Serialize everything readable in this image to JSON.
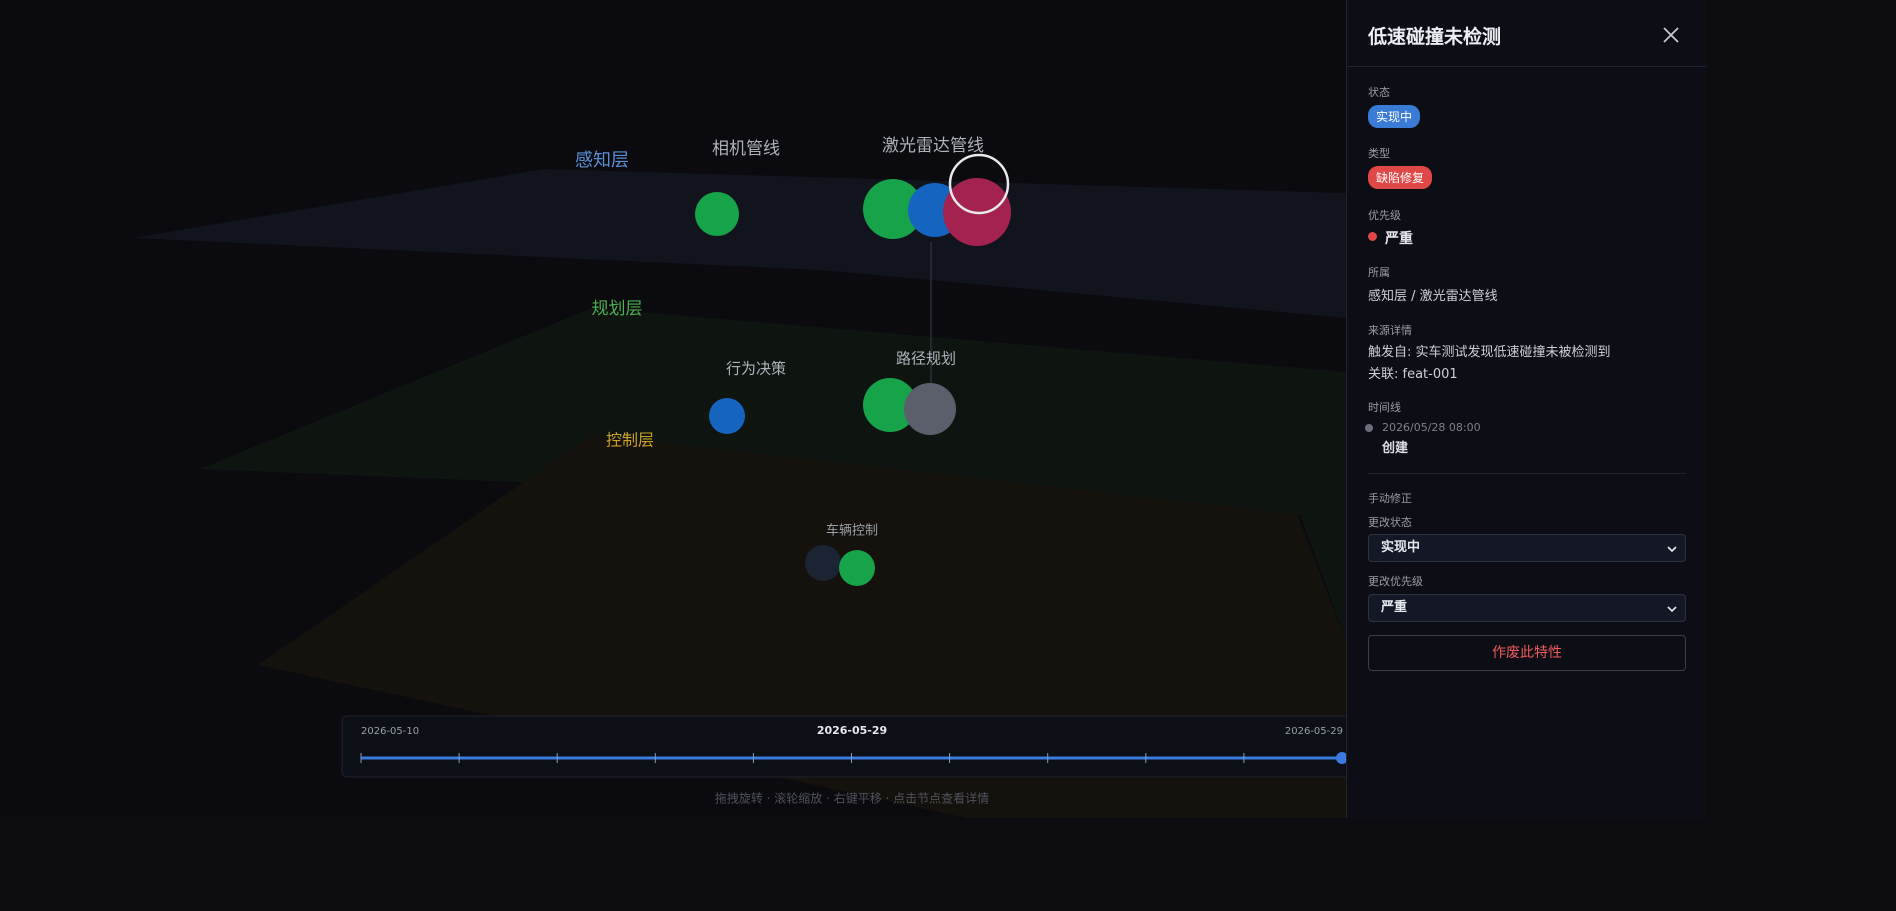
{
  "scene": {
    "layers": [
      "感知层",
      "规划层",
      "控制层"
    ],
    "modules": [
      "相机管线",
      "激光雷达管线",
      "行为决策",
      "路径规划",
      "车辆控制"
    ],
    "timeline": {
      "start": "2026-05-10",
      "current": "2026-05-29",
      "end": "2026-05-29"
    },
    "hint": "拖拽旋转 · 滚轮缩放 · 右键平移 · 点击节点查看详情"
  },
  "panel": {
    "title": "低速碰撞未检测",
    "status": {
      "label": "状态",
      "value": "实现中"
    },
    "type": {
      "label": "类型",
      "value": "缺陷修复"
    },
    "priority": {
      "label": "优先级",
      "value": "严重"
    },
    "owner": {
      "label": "所属",
      "value": "感知层 / 激光雷达管线"
    },
    "source": {
      "label": "来源详情",
      "trigger": "触发自: 实车测试发现低速碰撞未被检测到",
      "related": "关联: feat-001"
    },
    "timeline": {
      "label": "时间线",
      "events": [
        {
          "time": "2026/05/28 08:00",
          "text": "创建"
        }
      ]
    },
    "manual": {
      "label": "手动修正",
      "status_label": "更改状态",
      "status_value": "实现中",
      "priority_label": "更改优先级",
      "priority_value": "严重",
      "deprecate": "作废此特性"
    }
  }
}
